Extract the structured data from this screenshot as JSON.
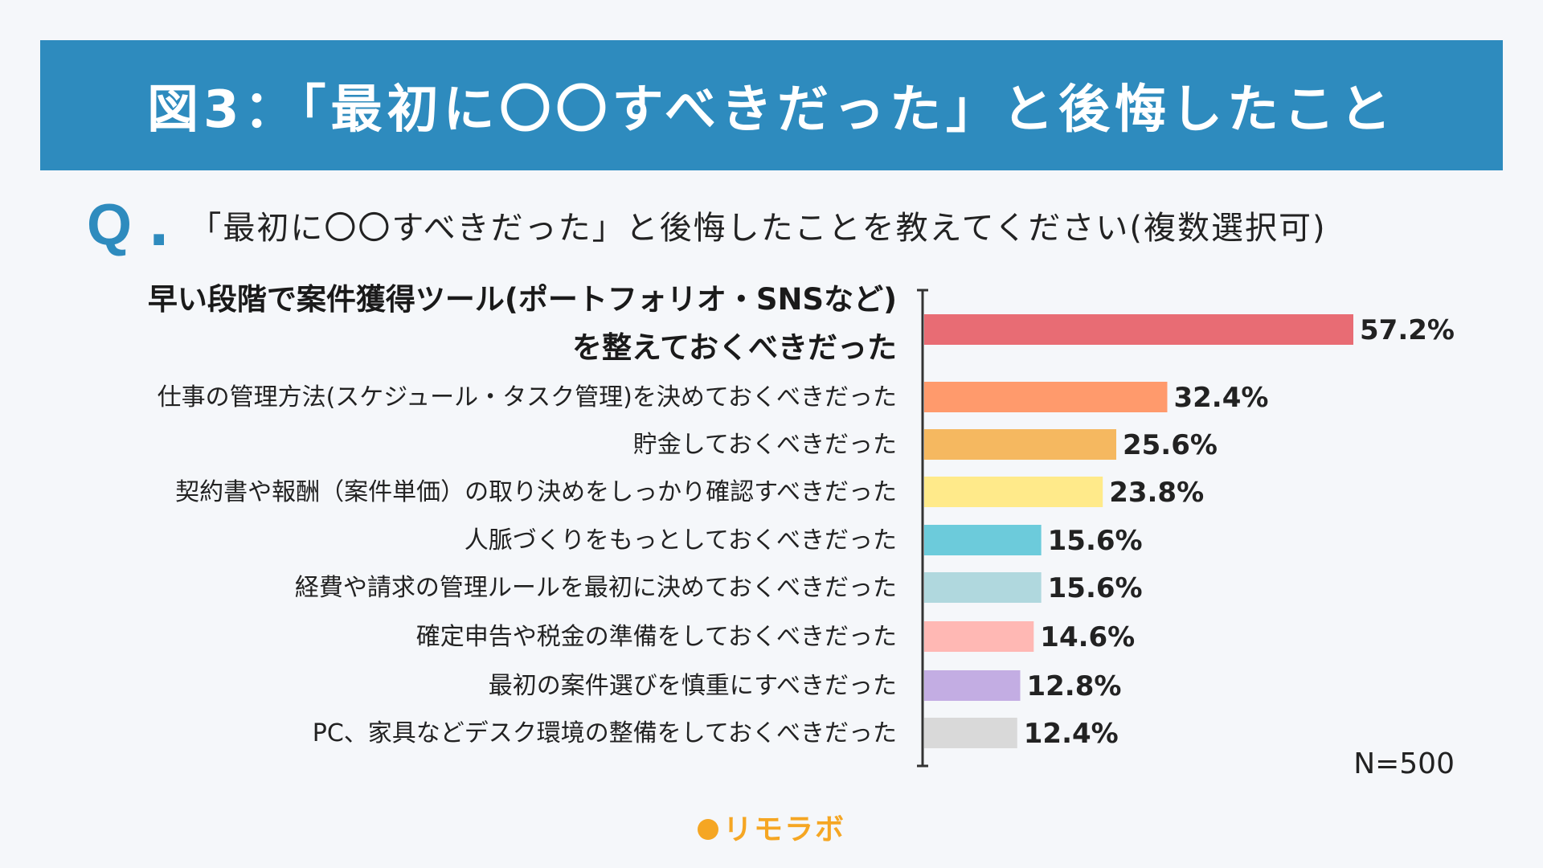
{
  "header": {
    "title": "図3：「最初に〇〇すべきだった」と後悔したこと"
  },
  "question": {
    "mark": "Q",
    "text": "「最初に〇〇すべきだった」と後悔したことを教えてください(複数選択可)"
  },
  "chart_data": {
    "type": "bar",
    "orientation": "horizontal",
    "categories": [
      "早い段階で案件獲得ツール(ポートフォリオ・SNSなど)を整えておくべきだった",
      "仕事の管理方法(スケジュール・タスク管理)を決めておくべきだった",
      "貯金しておくべきだった",
      "契約書や報酬（案件単価）の取り決めをしっかり確認すべきだった",
      "人脈づくりをもっとしておくべきだった",
      "経費や請求の管理ルールを最初に決めておくべきだった",
      "確定申告や税金の準備をしておくべきだった",
      "最初の案件選びを慎重にすべきだった",
      "PC、家具などデスク環境の整備をしておくべきだった"
    ],
    "values": [
      57.2,
      32.4,
      25.6,
      23.8,
      15.6,
      15.6,
      14.6,
      12.8,
      12.4
    ],
    "value_labels": [
      "57.2%",
      "32.4%",
      "25.6%",
      "23.8%",
      "15.6%",
      "15.6%",
      "14.6%",
      "12.8%",
      "12.4%"
    ],
    "colors": [
      "#e86c74",
      "#ff9a6c",
      "#f5b860",
      "#ffea8a",
      "#6ccbdb",
      "#b0d8de",
      "#ffb8b4",
      "#c3ade3",
      "#d9d9d9"
    ],
    "first_label_lines": [
      "早い段階で案件獲得ツール(ポートフォリオ・SNSなど)",
      "を整えておくべきだった"
    ],
    "unit": "%",
    "note": "N=500",
    "xlim": [
      0,
      57.2
    ],
    "legend": "none",
    "grid": false
  },
  "brand": {
    "name": "リモラボ",
    "accent": "#f5a623"
  }
}
